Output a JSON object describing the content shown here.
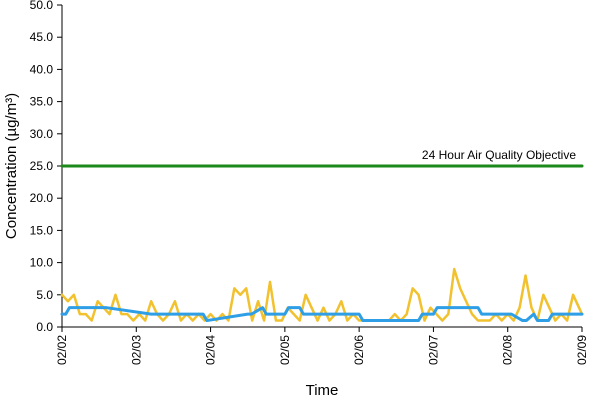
{
  "chart_data": {
    "type": "line",
    "title": "",
    "xlabel": "Time",
    "ylabel": "Concentration (µg/m³)",
    "ylim": [
      0,
      50
    ],
    "y_ticks": [
      "0.0",
      "5.0",
      "10.0",
      "15.0",
      "20.0",
      "25.0",
      "30.0",
      "35.0",
      "40.0",
      "45.0",
      "50.0"
    ],
    "x_ticks": [
      "02/02",
      "02/03",
      "02/04",
      "02/05",
      "02/06",
      "02/07",
      "02/08",
      "02/09"
    ],
    "grid": false,
    "legend": "none",
    "annotation": {
      "text": "24 Hour Air Quality Objective",
      "y": 25
    },
    "series": [
      {
        "color": "#f2c12e",
        "x": [
          0,
          0.08,
          0.16,
          0.24,
          0.32,
          0.4,
          0.48,
          0.56,
          0.64,
          0.72,
          0.8,
          0.88,
          0.96,
          1.04,
          1.12,
          1.2,
          1.28,
          1.36,
          1.44,
          1.52,
          1.6,
          1.68,
          1.76,
          1.84,
          1.92,
          2.0,
          2.08,
          2.16,
          2.24,
          2.32,
          2.4,
          2.48,
          2.56,
          2.64,
          2.72,
          2.8,
          2.88,
          2.96,
          3.04,
          3.12,
          3.2,
          3.28,
          3.36,
          3.44,
          3.52,
          3.6,
          3.68,
          3.76,
          3.84,
          3.92,
          4.0,
          4.08,
          4.16,
          4.24,
          4.32,
          4.4,
          4.48,
          4.56,
          4.64,
          4.72,
          4.8,
          4.88,
          4.96,
          5.04,
          5.12,
          5.2,
          5.28,
          5.36,
          5.44,
          5.52,
          5.6,
          5.68,
          5.76,
          5.84,
          5.92,
          6.0,
          6.08,
          6.16,
          6.24,
          6.32,
          6.4,
          6.48,
          6.56,
          6.64,
          6.72,
          6.8,
          6.88,
          6.96,
          7.0
        ],
        "y": [
          5,
          4,
          5,
          2,
          2,
          1,
          4,
          3,
          2,
          5,
          2,
          2,
          1,
          2,
          1,
          4,
          2,
          1,
          2,
          4,
          1,
          2,
          1,
          2,
          1,
          2,
          1,
          2,
          1,
          6,
          5,
          6,
          1,
          4,
          1,
          7,
          1,
          1,
          3,
          2,
          1,
          5,
          3,
          1,
          3,
          1,
          2,
          4,
          1,
          2,
          1,
          1,
          1,
          1,
          1,
          1,
          2,
          1,
          2,
          6,
          5,
          1,
          3,
          2,
          1,
          2,
          9,
          6,
          4,
          2,
          1,
          1,
          1,
          2,
          1,
          2,
          1,
          3,
          8,
          3,
          1,
          5,
          3,
          1,
          2,
          1,
          5,
          3,
          2
        ]
      },
      {
        "color": "#2e9ee6",
        "x": [
          0,
          0.05,
          0.1,
          0.55,
          0.6,
          1.2,
          1.25,
          1.9,
          1.95,
          2.5,
          2.55,
          2.7,
          2.75,
          3.0,
          3.05,
          3.2,
          3.25,
          3.45,
          3.5,
          4.0,
          4.05,
          4.5,
          4.55,
          4.8,
          4.85,
          5.0,
          5.05,
          5.6,
          5.65,
          6.0,
          6.05,
          6.2,
          6.25,
          6.35,
          6.4,
          6.55,
          6.6,
          7.0
        ],
        "y": [
          2,
          2,
          3,
          3,
          3,
          2,
          2,
          2,
          1,
          2,
          2,
          3,
          2,
          2,
          3,
          3,
          2,
          2,
          2,
          2,
          1,
          1,
          1,
          1,
          2,
          2,
          3,
          3,
          2,
          2,
          2,
          1,
          1,
          2,
          1,
          1,
          2,
          2
        ]
      },
      {
        "color": "#1b8a1b",
        "x": [
          0,
          7
        ],
        "y": [
          25,
          25
        ]
      }
    ]
  }
}
